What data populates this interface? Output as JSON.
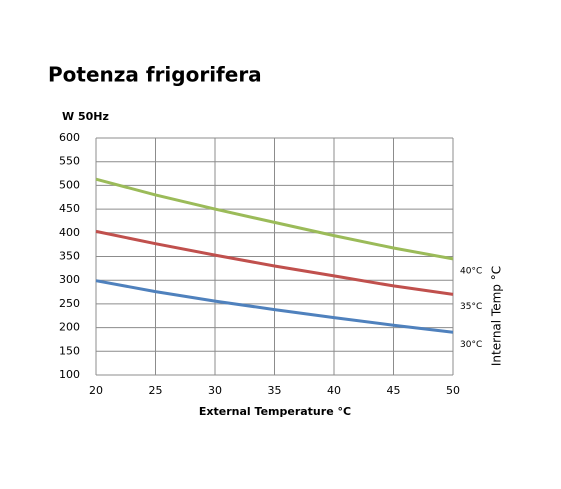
{
  "chart_data": {
    "type": "line",
    "title": "Potenza frigorifera",
    "ylabel": "W  50Hz",
    "xlabel": "External Temperature °C",
    "legend_title": "Internal Temp °C",
    "x": [
      20,
      25,
      30,
      35,
      40,
      45,
      50
    ],
    "series": [
      {
        "name": "40°C",
        "color": "#9bbb59",
        "values": [
          513,
          480,
          450,
          422,
          394,
          368,
          345
        ]
      },
      {
        "name": "35°C",
        "color": "#c0504d",
        "values": [
          403,
          377,
          353,
          330,
          309,
          288,
          270
        ]
      },
      {
        "name": "30°C",
        "color": "#4f81bd",
        "values": [
          299,
          276,
          256,
          238,
          221,
          205,
          190
        ]
      }
    ],
    "xlim": [
      20,
      50
    ],
    "xticks": [
      20,
      25,
      30,
      35,
      40,
      45,
      50
    ],
    "ylim": [
      100,
      600
    ],
    "yticks": [
      100,
      150,
      200,
      250,
      300,
      350,
      400,
      450,
      500,
      550,
      600
    ],
    "grid": true
  }
}
